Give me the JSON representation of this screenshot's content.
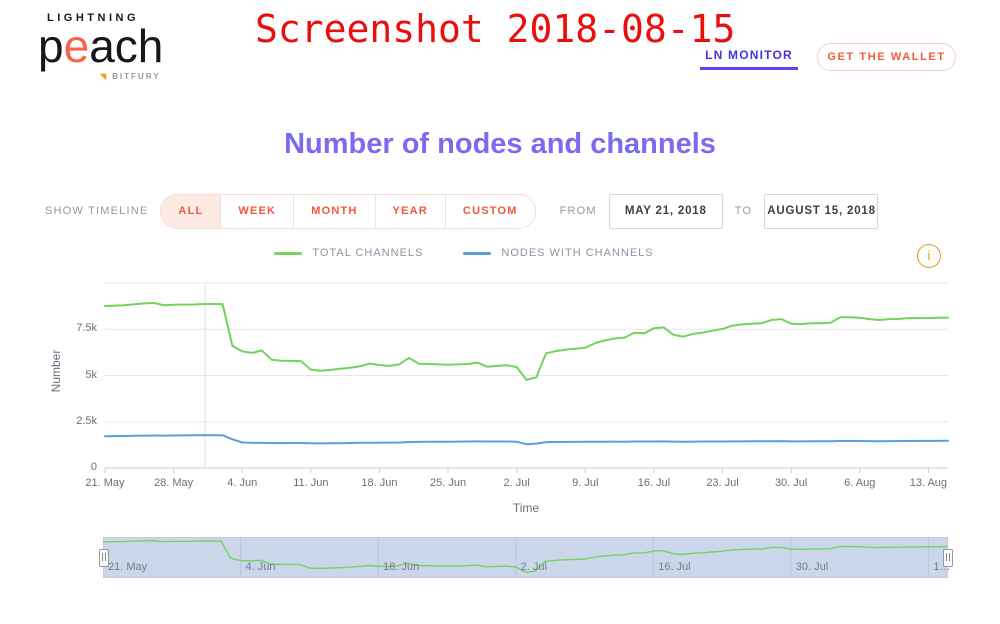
{
  "overlay": {
    "screenshot_label": "Screenshot 2018-08-15"
  },
  "header": {
    "logo": {
      "line1": "LIGHTNING",
      "brand_p": "p",
      "brand_e": "e",
      "brand_rest": "ach",
      "byline": "BITFURY"
    },
    "nav": {
      "ln_monitor": "LN MONITOR",
      "get_wallet": "GET THE WALLET"
    }
  },
  "title": "Number of nodes and channels",
  "controls": {
    "show_timeline_label": "SHOW TIMELINE",
    "range_buttons": [
      {
        "label": "ALL",
        "active": true
      },
      {
        "label": "WEEK",
        "active": false
      },
      {
        "label": "MONTH",
        "active": false
      },
      {
        "label": "YEAR",
        "active": false
      },
      {
        "label": "CUSTOM",
        "active": false
      }
    ],
    "from_label": "FROM",
    "from_value": "MAY 21, 2018",
    "to_label": "TO",
    "to_value": "AUGUST 15, 2018"
  },
  "legend": [
    {
      "label": "TOTAL CHANNELS",
      "color": "#74d35c"
    },
    {
      "label": "NODES WITH CHANNELS",
      "color": "#5d9ddb"
    }
  ],
  "info_icon_glyph": "i",
  "colors": {
    "accent_coral": "#f2573e",
    "accent_purple": "#7a6cf0",
    "link_blue": "#4336e0",
    "info_orange": "#f0911e",
    "grid": "#e7e7e7",
    "navigator_bg": "#ccd6ea"
  },
  "chart_data": {
    "type": "line",
    "title": "Number of nodes and channels",
    "xlabel": "Time",
    "ylabel": "Number",
    "ylim": [
      0,
      10000
    ],
    "x_range": [
      "May 21, 2018",
      "August 15, 2018"
    ],
    "cadence": "daily",
    "grid": true,
    "legend_position": "top",
    "y_ticks": [
      {
        "value": 0,
        "label": "0"
      },
      {
        "value": 2500,
        "label": "2.5k"
      },
      {
        "value": 5000,
        "label": "5k"
      },
      {
        "value": 7500,
        "label": "7.5k"
      }
    ],
    "x_tick_labels": [
      "21. May",
      "28. May",
      "4. Jun",
      "11. Jun",
      "18. Jun",
      "25. Jun",
      "2. Jul",
      "9. Jul",
      "16. Jul",
      "23. Jul",
      "30. Jul",
      "6. Aug",
      "13. Aug"
    ],
    "series": [
      {
        "name": "TOTAL CHANNELS",
        "color": "#74d35c",
        "values": [
          8750,
          8780,
          8800,
          8850,
          8900,
          8920,
          8800,
          8820,
          8830,
          8840,
          8860,
          8870,
          8860,
          6600,
          6300,
          6220,
          6350,
          5850,
          5800,
          5790,
          5780,
          5320,
          5260,
          5300,
          5360,
          5420,
          5500,
          5650,
          5560,
          5520,
          5600,
          5950,
          5640,
          5620,
          5600,
          5580,
          5600,
          5620,
          5700,
          5470,
          5520,
          5550,
          5460,
          4760,
          4900,
          6200,
          6320,
          6400,
          6450,
          6500,
          6750,
          6900,
          7000,
          7050,
          7300,
          7280,
          7550,
          7600,
          7200,
          7100,
          7250,
          7320,
          7420,
          7520,
          7700,
          7760,
          7800,
          7820,
          8000,
          8050,
          7800,
          7780,
          7820,
          7820,
          7850,
          8150,
          8150,
          8120,
          8050,
          8000,
          8050,
          8060,
          8100,
          8100,
          8110,
          8120,
          8130
        ]
      },
      {
        "name": "NODES WITH CHANNELS",
        "color": "#5d9ddb",
        "values": [
          1720,
          1725,
          1730,
          1740,
          1750,
          1755,
          1750,
          1755,
          1760,
          1765,
          1770,
          1775,
          1775,
          1550,
          1380,
          1360,
          1355,
          1350,
          1345,
          1350,
          1350,
          1340,
          1330,
          1335,
          1340,
          1350,
          1360,
          1370,
          1370,
          1375,
          1380,
          1400,
          1410,
          1415,
          1420,
          1420,
          1425,
          1430,
          1440,
          1430,
          1430,
          1435,
          1420,
          1280,
          1320,
          1400,
          1405,
          1410,
          1410,
          1415,
          1420,
          1420,
          1425,
          1420,
          1430,
          1430,
          1435,
          1440,
          1425,
          1420,
          1425,
          1430,
          1430,
          1435,
          1440,
          1440,
          1445,
          1445,
          1450,
          1455,
          1440,
          1440,
          1445,
          1445,
          1450,
          1460,
          1460,
          1460,
          1455,
          1450,
          1455,
          1460,
          1460,
          1465,
          1465,
          1465,
          1470
        ]
      }
    ],
    "navigator": {
      "x_tick_labels": [
        "21. May",
        "4. Jun",
        "18. Jun",
        "2. Jul",
        "16. Jul",
        "30. Jul",
        "1…"
      ]
    }
  }
}
